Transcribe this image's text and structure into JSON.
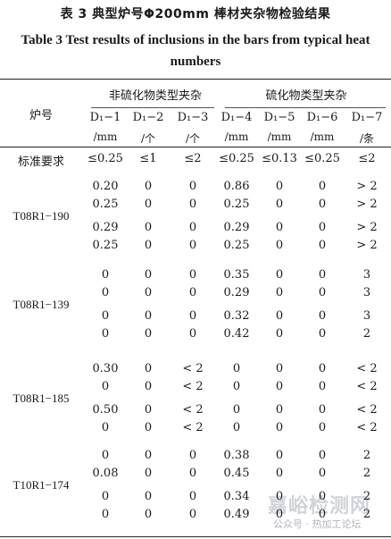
{
  "title_cn": "表 3  典型炉号Φ200mm 棒材夹杂物检验结果",
  "title_en": "Table 3 Test results of inclusions in the bars from typical heat numbers",
  "header": {
    "heat_label": "炉号",
    "group_nonsulfide": "非硫化物类型夹杂",
    "group_sulfide": "硫化物类型夹杂",
    "columns": [
      {
        "code": "D₁−1",
        "unit": "/mm"
      },
      {
        "code": "D₁−2",
        "unit": "/个"
      },
      {
        "code": "D₁−3",
        "unit": "/个"
      },
      {
        "code": "D₁−4",
        "unit": "/mm"
      },
      {
        "code": "D₁−5",
        "unit": "/mm"
      },
      {
        "code": "D₁−6",
        "unit": "/mm"
      },
      {
        "code": "D₁−7",
        "unit": "/条"
      }
    ]
  },
  "standard": {
    "label": "标准要求",
    "values": [
      "≤0.25",
      "≤1",
      "≤2",
      "≤0.25",
      "≤0.13",
      "≤0.25",
      "≤2"
    ]
  },
  "groups": [
    {
      "heat": "T08R1−190",
      "rows": [
        [
          "0.20",
          "0",
          "0",
          "0.86",
          "0",
          "0",
          "> 2"
        ],
        [
          "0.25",
          "0",
          "0",
          "0.25",
          "0",
          "0",
          "> 2"
        ],
        [
          "0.29",
          "0",
          "0",
          "0.29",
          "0",
          "0",
          "> 2"
        ],
        [
          "0.25",
          "0",
          "0",
          "0.25",
          "0",
          "0",
          "> 2"
        ]
      ]
    },
    {
      "heat": "T08R1−139",
      "rows": [
        [
          "0",
          "0",
          "0",
          "0.35",
          "0",
          "0",
          "3"
        ],
        [
          "0",
          "0",
          "0",
          "0.29",
          "0",
          "0",
          "3"
        ],
        [
          "0",
          "0",
          "0",
          "0.32",
          "0",
          "0",
          "3"
        ],
        [
          "0",
          "0",
          "0",
          "0.42",
          "0",
          "0",
          "2"
        ]
      ]
    },
    {
      "heat": "T08R1−185",
      "rows": [
        [
          "0.30",
          "0",
          "< 2",
          "0",
          "0",
          "0",
          "< 2"
        ],
        [
          "0",
          "0",
          "< 2",
          "0",
          "0",
          "0",
          "< 2"
        ],
        [
          "0.50",
          "0",
          "< 2",
          "0",
          "0",
          "0",
          "< 2"
        ],
        [
          "0",
          "0",
          "< 2",
          "0",
          "0",
          "0",
          "< 2"
        ]
      ]
    },
    {
      "heat": "T10R1−174",
      "rows": [
        [
          "0",
          "0",
          "0",
          "0.38",
          "0",
          "0",
          "2"
        ],
        [
          "0.08",
          "0",
          "0",
          "0.45",
          "0",
          "0",
          "2"
        ],
        [
          "0",
          "0",
          "0",
          "0.34",
          "0",
          "0",
          "2"
        ],
        [
          "0",
          "0",
          "0",
          "0.49",
          "0",
          "0",
          "2"
        ]
      ]
    }
  ],
  "watermark": {
    "text": "嘉峪检测网",
    "sub": "公众号 · 热加工论坛"
  }
}
